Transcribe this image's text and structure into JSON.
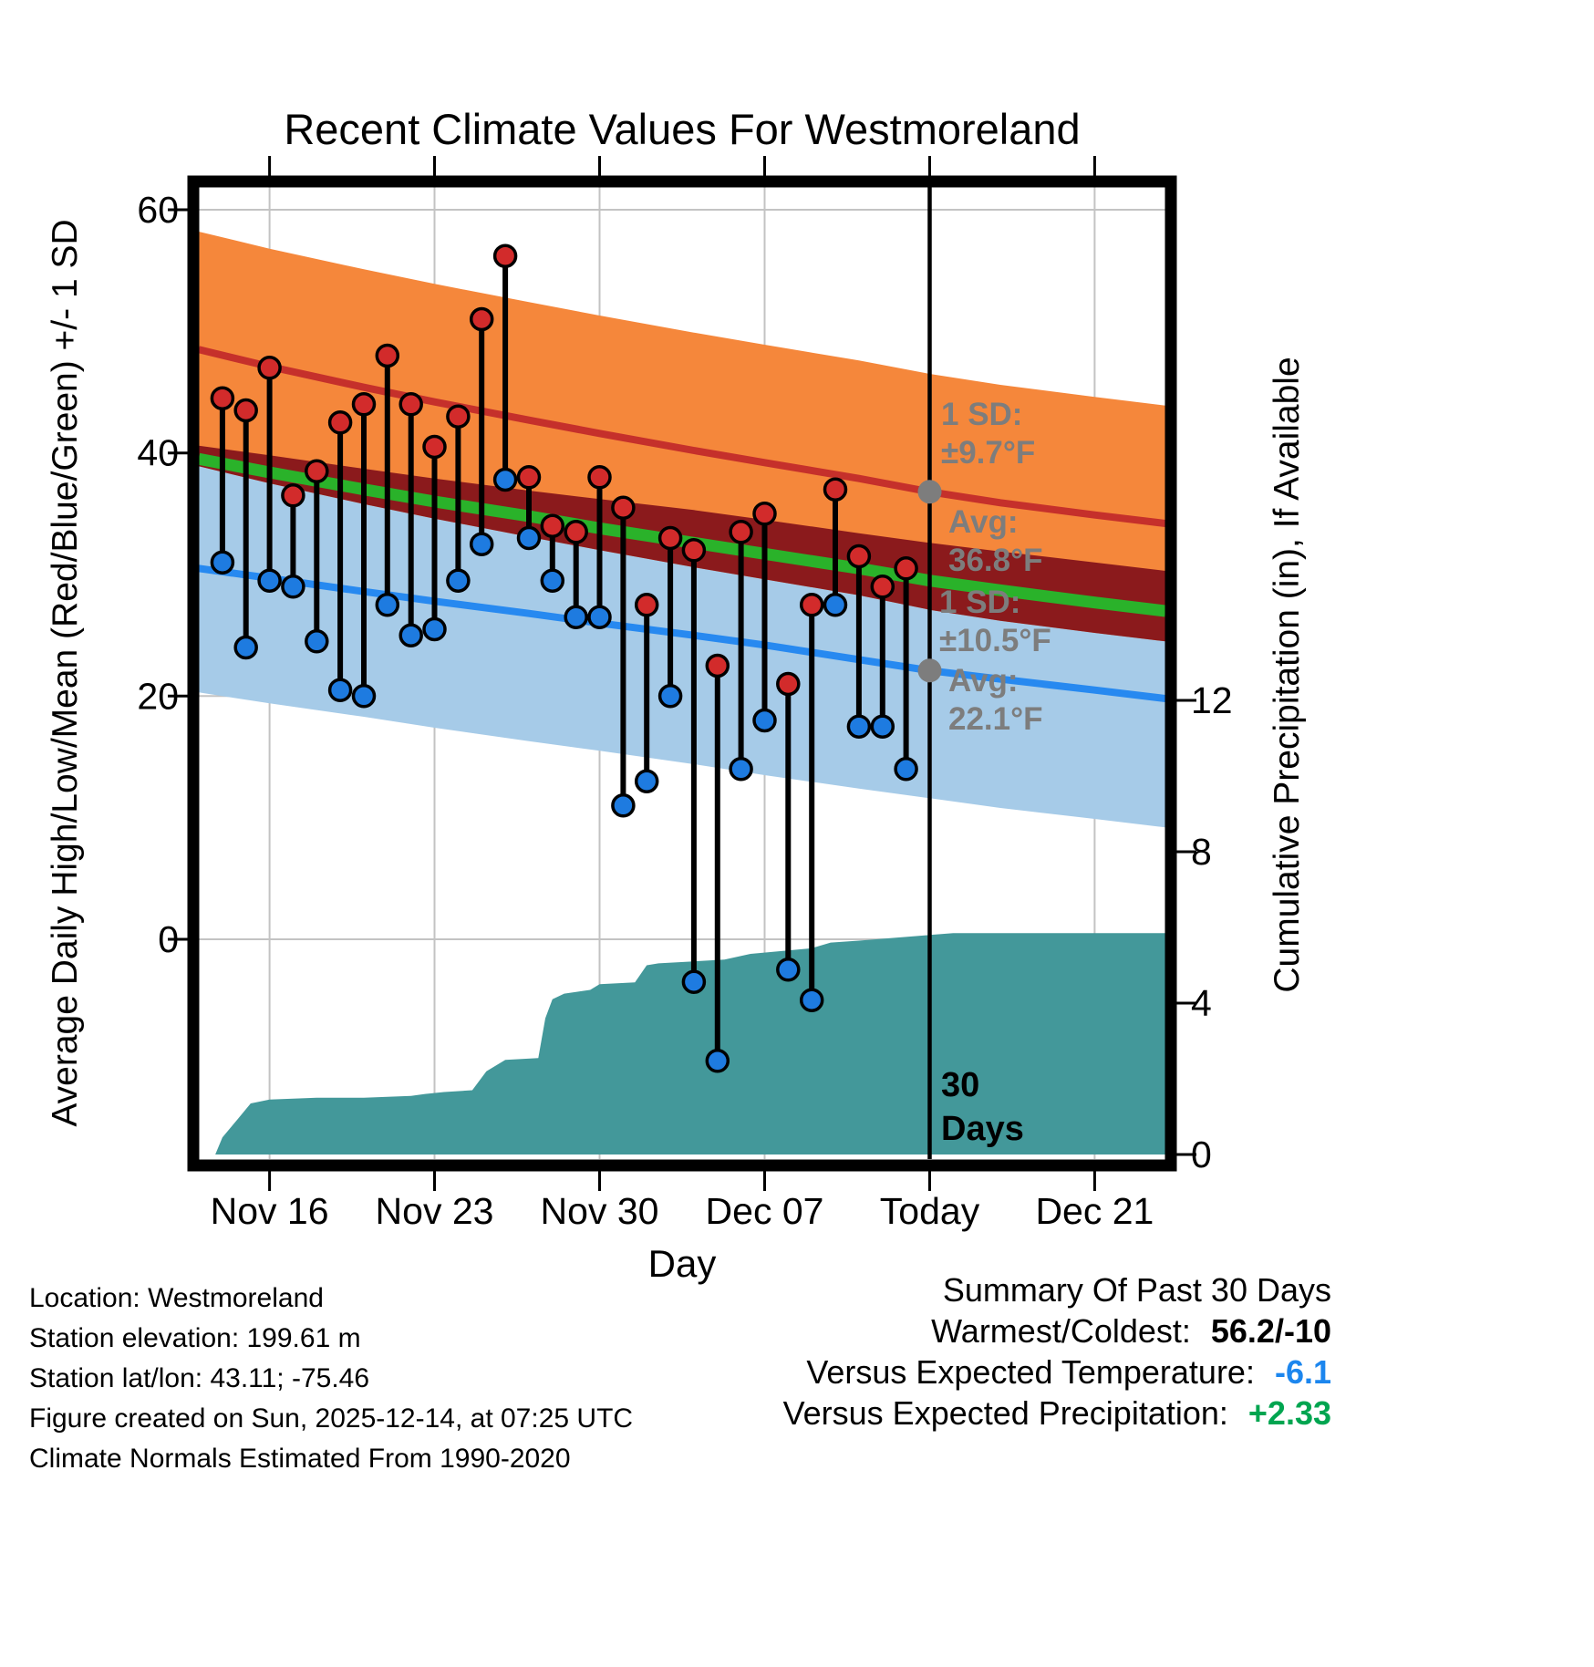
{
  "title": "Recent Climate Values For Westmoreland",
  "chart_data": {
    "type": "line",
    "subtype": "climate-highlow-bands-with-cumulative-precip",
    "title": "Recent Climate Values For Westmoreland",
    "xlabel": "Day",
    "ylabel_left": "Average Daily High/Low/Mean (Red/Blue/Green) +/- 1 SD",
    "ylabel_right": "Cumulative Precipitation (in), If Available",
    "x_tick_labels": [
      "Nov 16",
      "Nov 23",
      "Nov 30",
      "Dec 07",
      "Today",
      "Dec 21"
    ],
    "x_tick_days": [
      3,
      10,
      17,
      24,
      31,
      38
    ],
    "x_range_days": [
      0,
      41
    ],
    "yticks_left": [
      0,
      20,
      40,
      60
    ],
    "ylim_left": [
      -18,
      62
    ],
    "yticks_right": [
      0,
      4,
      8,
      12
    ],
    "ylim_right": [
      0,
      25.6
    ],
    "grid": true,
    "today_day_index": 31,
    "daily": {
      "dates": [
        "Nov 14",
        "Nov 15",
        "Nov 16",
        "Nov 17",
        "Nov 18",
        "Nov 19",
        "Nov 20",
        "Nov 21",
        "Nov 22",
        "Nov 23",
        "Nov 24",
        "Nov 25",
        "Nov 26",
        "Nov 27",
        "Nov 28",
        "Nov 29",
        "Nov 30",
        "Dec 01",
        "Dec 02",
        "Dec 03",
        "Dec 04",
        "Dec 05",
        "Dec 06",
        "Dec 07",
        "Dec 08",
        "Dec 09",
        "Dec 10",
        "Dec 11",
        "Dec 12",
        "Dec 13"
      ],
      "day_index": [
        1,
        2,
        3,
        4,
        5,
        6,
        7,
        8,
        9,
        10,
        11,
        12,
        13,
        14,
        15,
        16,
        17,
        18,
        19,
        20,
        21,
        22,
        23,
        24,
        25,
        26,
        27,
        28,
        29,
        30
      ],
      "high": [
        44.5,
        43.5,
        47,
        36.5,
        38.5,
        42.5,
        44,
        48,
        44,
        40.5,
        43,
        51,
        56.2,
        38,
        34,
        33.5,
        38,
        35.5,
        27.5,
        33,
        32,
        22.5,
        33.5,
        35,
        21,
        27.5,
        37,
        31.5,
        29,
        30.5
      ],
      "low": [
        31,
        24,
        29.5,
        29,
        24.5,
        20.5,
        20,
        27.5,
        25,
        25.5,
        29.5,
        32.5,
        37.8,
        33,
        29.5,
        26.5,
        26.5,
        11,
        13,
        20,
        -3.5,
        -10,
        14,
        18,
        -2.5,
        -5,
        27.5,
        17.5,
        17.5,
        14
      ]
    },
    "normals": {
      "days": [
        0,
        3,
        7,
        10,
        14,
        17,
        21,
        24,
        28,
        31,
        34,
        38,
        41
      ],
      "high_avg": [
        48.5,
        47.1,
        45.4,
        44.2,
        42.7,
        41.6,
        40.2,
        39.2,
        37.9,
        36.8,
        35.9,
        34.9,
        34.2
      ],
      "high_upper": [
        58.2,
        56.8,
        55.1,
        53.9,
        52.4,
        51.3,
        49.9,
        48.9,
        47.6,
        46.5,
        45.6,
        44.6,
        43.9
      ],
      "high_lower": [
        38.9,
        37.5,
        35.8,
        34.6,
        33.1,
        32.0,
        30.6,
        29.6,
        28.3,
        27.1,
        26.2,
        25.2,
        24.5
      ],
      "low_avg": [
        30.5,
        29.7,
        28.6,
        27.8,
        26.8,
        26.0,
        25.0,
        24.2,
        23.0,
        22.1,
        21.4,
        20.5,
        19.8
      ],
      "low_upper": [
        40.6,
        39.8,
        38.7,
        37.9,
        36.9,
        36.2,
        35.3,
        34.5,
        33.4,
        32.6,
        31.9,
        31.0,
        30.3
      ],
      "low_lower": [
        20.3,
        19.4,
        18.3,
        17.4,
        16.3,
        15.5,
        14.4,
        13.5,
        12.4,
        11.6,
        10.8,
        9.9,
        9.2
      ],
      "mean": [
        39.5,
        38.4,
        37.0,
        36.0,
        34.8,
        33.8,
        32.6,
        31.7,
        30.5,
        29.5,
        28.7,
        27.7,
        27.0
      ]
    },
    "precip_cumulative": {
      "days": [
        0.7,
        1.0,
        1.6,
        2.2,
        3,
        5,
        7,
        9,
        9.6,
        10.4,
        11.6,
        12.2,
        13,
        14.4,
        14.7,
        15,
        15.5,
        16.6,
        17,
        18.5,
        19,
        19.5,
        22.3,
        23.4,
        26,
        26.8,
        28,
        30,
        31,
        32,
        41
      ],
      "values": [
        0,
        0.45,
        0.9,
        1.35,
        1.45,
        1.5,
        1.5,
        1.55,
        1.6,
        1.65,
        1.7,
        2.2,
        2.5,
        2.55,
        3.6,
        4.1,
        4.25,
        4.35,
        4.5,
        4.55,
        5.0,
        5.05,
        5.15,
        5.3,
        5.45,
        5.6,
        5.65,
        5.75,
        5.8,
        5.85,
        5.85
      ]
    },
    "today_markers": {
      "high_avg": 36.8,
      "low_avg": 22.1
    },
    "annotations": {
      "high_sd_label": "1 SD:",
      "high_sd_value": "±9.7°F",
      "high_avg_label": "Avg:",
      "high_avg_value": "36.8°F",
      "low_sd_label": "1 SD:",
      "low_sd_value": "±10.5°F",
      "low_avg_label": "Avg:",
      "low_avg_value": "22.1°F",
      "days_label_line1": "30",
      "days_label_line2": "Days"
    },
    "colors": {
      "high_band": "#F5873B",
      "high_line": "#C5302B",
      "overlap_band": "#8B1A1C",
      "mean_line": "#2AB22A",
      "low_band": "#A6CBE8",
      "low_line": "#2789F0",
      "high_dot": "#D22B2B",
      "low_dot": "#1E7BE0",
      "precip_area": "#43989A",
      "stem": "#000000",
      "today_line": "#000000",
      "grid": "#C3C3C3",
      "annotation": "#7D7D7D"
    }
  },
  "footer": {
    "left_lines": [
      "Location: Westmoreland",
      "Station elevation: 199.61 m",
      "Station lat/lon: 43.11; -75.46",
      "Figure created on Sun, 2025-12-14, at 07:25 UTC",
      "Climate Normals Estimated From 1990-2020"
    ],
    "summary": {
      "title": "Summary Of Past 30 Days",
      "rows": [
        {
          "label": "Warmest/Coldest:",
          "value": "56.2/-10",
          "color": "#000000"
        },
        {
          "label": "Versus Expected Temperature:",
          "value": "-6.1",
          "color": "#1C86EE"
        },
        {
          "label": "Versus Expected Precipitation:",
          "value": "+2.33",
          "color": "#00A550"
        }
      ]
    }
  }
}
